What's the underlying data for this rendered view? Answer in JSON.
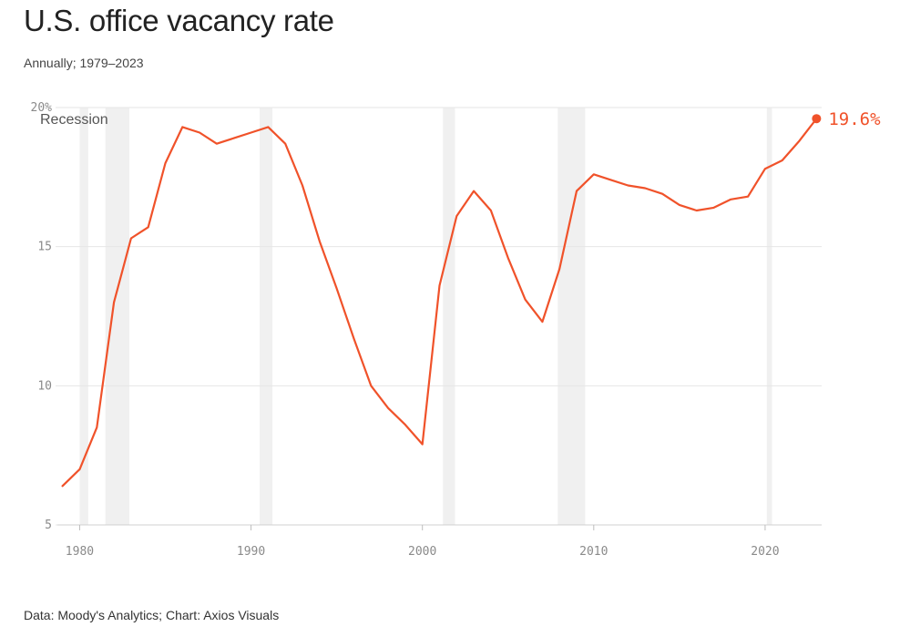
{
  "header": {
    "title": "U.S. office vacancy rate",
    "subtitle": "Annually; 1979–2023"
  },
  "footer": {
    "source": "Data: Moody's Analytics; Chart: Axios Visuals"
  },
  "colors": {
    "line": "#f0522a",
    "recession": "#f0f0f0",
    "grid": "#e6e6e6",
    "tick_text": "#8a8a8a"
  },
  "chart_data": {
    "type": "line",
    "title": "U.S. office vacancy rate",
    "subtitle": "Annually; 1979–2023",
    "xlabel": "",
    "ylabel": "",
    "xlim": [
      1978.7,
      2023.3
    ],
    "ylim": [
      5,
      20
    ],
    "grid": true,
    "x_ticks": [
      1980,
      1990,
      2000,
      2010,
      2020
    ],
    "y_ticks": [
      {
        "value": 5,
        "label": "5"
      },
      {
        "value": 10,
        "label": "10"
      },
      {
        "value": 15,
        "label": "15"
      },
      {
        "value": 20,
        "label": "20%"
      }
    ],
    "recession_label": "Recession",
    "end_label": "19.6%",
    "recessions": [
      [
        1980.0,
        1980.5
      ],
      [
        1981.5,
        1982.9
      ],
      [
        1990.5,
        1991.25
      ],
      [
        2001.2,
        2001.9
      ],
      [
        2007.9,
        2009.5
      ],
      [
        2020.1,
        2020.4
      ]
    ],
    "series": [
      {
        "x": [
          1979,
          1980,
          1981,
          1982,
          1983,
          1984,
          1985,
          1986,
          1987,
          1988,
          1989,
          1990,
          1991,
          1992,
          1993,
          1994,
          1995,
          1996,
          1997,
          1998,
          1999,
          2000,
          2001,
          2002,
          2003,
          2004,
          2005,
          2006,
          2007,
          2008,
          2009,
          2010,
          2011,
          2012,
          2013,
          2014,
          2015,
          2016,
          2017,
          2018,
          2019,
          2020,
          2021,
          2022,
          2023
        ],
        "values": [
          6.4,
          7.0,
          8.5,
          13.0,
          15.3,
          15.7,
          18.0,
          19.3,
          19.1,
          18.7,
          18.9,
          19.1,
          19.3,
          18.7,
          17.2,
          15.2,
          13.5,
          11.7,
          10.0,
          9.2,
          8.6,
          7.9,
          13.6,
          16.1,
          17.0,
          16.3,
          14.6,
          13.1,
          12.3,
          14.2,
          17.0,
          17.6,
          17.4,
          17.2,
          17.1,
          16.9,
          16.5,
          16.3,
          16.4,
          16.7,
          16.8,
          17.8,
          18.1,
          18.8,
          19.6
        ]
      }
    ]
  }
}
